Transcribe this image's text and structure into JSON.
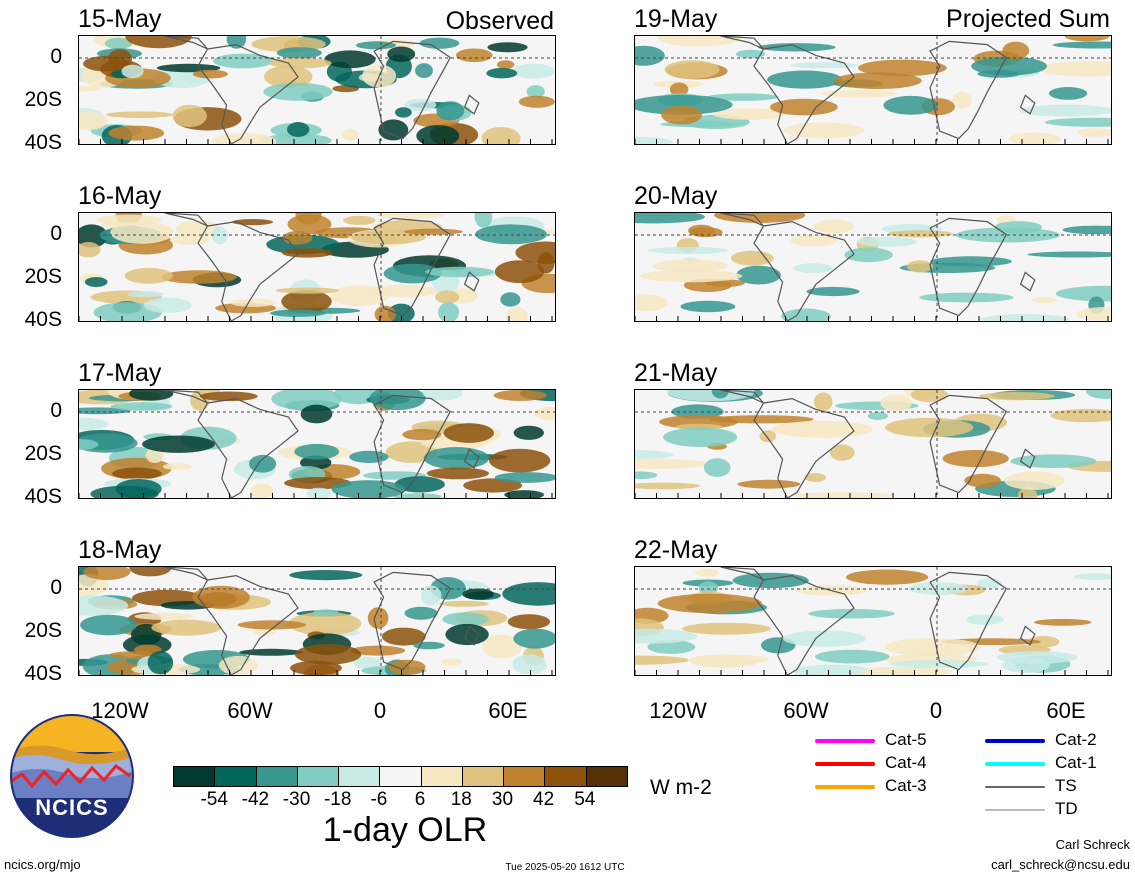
{
  "header": {
    "observed_label": "Observed",
    "projected_label": "Projected Sum"
  },
  "observed_panels": [
    {
      "date": "15-May"
    },
    {
      "date": "16-May"
    },
    {
      "date": "17-May"
    },
    {
      "date": "18-May"
    }
  ],
  "projected_panels": [
    {
      "date": "19-May"
    },
    {
      "date": "20-May"
    },
    {
      "date": "21-May"
    },
    {
      "date": "22-May"
    }
  ],
  "axes": {
    "y_labels": [
      "0",
      "20S",
      "40S"
    ],
    "x_labels": [
      "120W",
      "60W",
      "0",
      "60E"
    ]
  },
  "colorbar": {
    "title": "1-day OLR",
    "units": "W m-2",
    "tick_labels": [
      "-54",
      "-42",
      "-30",
      "-18",
      "-6",
      "6",
      "18",
      "30",
      "42",
      "54"
    ],
    "colors": [
      "#00392f",
      "#03665d",
      "#35978f",
      "#80cdc1",
      "#c7eae5",
      "#f5f5f5",
      "#f6e8c3",
      "#dfc27d",
      "#bf812d",
      "#8c510a",
      "#543005"
    ]
  },
  "legend": {
    "items": [
      {
        "label": "Cat-5",
        "color": "#ff00ff"
      },
      {
        "label": "Cat-2",
        "color": "#0000cd"
      },
      {
        "label": "Cat-4",
        "color": "#ff0000"
      },
      {
        "label": "Cat-1",
        "color": "#00ffff"
      },
      {
        "label": "Cat-3",
        "color": "#ffa500"
      },
      {
        "label": "TS",
        "color": "#666666"
      },
      {
        "label": "TD",
        "color": "#bbbbbb"
      }
    ]
  },
  "logo": {
    "text": "NCICS"
  },
  "footer": {
    "url": "ncics.org/mjo",
    "timestamp": "Tue 2025-05-20 1612 UTC",
    "author": "Carl Schreck",
    "email": "carl_schreck@ncsu.edu"
  }
}
